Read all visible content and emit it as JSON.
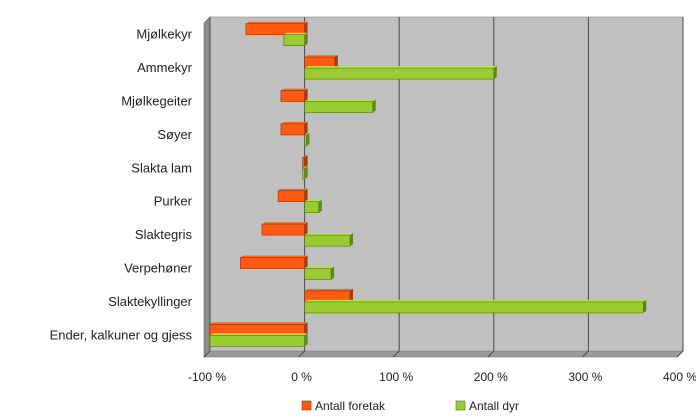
{
  "chart_data": {
    "type": "bar",
    "orientation": "horizontal",
    "categories": [
      "Mjølkekyr",
      "Ammekyr",
      "Mjølkegeiter",
      "Søyer",
      "Slakta lam",
      "Purker",
      "Slaktegris",
      "Verpehøner",
      "Slaktekyllinger",
      "Ender, kalkuner og gjess"
    ],
    "series": [
      {
        "name": "Antall foretak",
        "color": "#ff5a14",
        "values": [
          -62,
          32,
          -25,
          -25,
          -2,
          -28,
          -45,
          -68,
          48,
          -100
        ]
      },
      {
        "name": "Antall dyr",
        "color": "#99cc33",
        "values": [
          -22,
          200,
          72,
          2,
          -2,
          15,
          48,
          28,
          358,
          -100
        ]
      }
    ],
    "xlim": [
      -100,
      400
    ],
    "xticks": [
      -100,
      0,
      100,
      200,
      300,
      400
    ],
    "xtick_labels": [
      "-100 %",
      "0 %",
      "100 %",
      "200 %",
      "300 %",
      "400 %"
    ],
    "grid": true,
    "plot_background": "#c0c0c0",
    "legend_position": "bottom"
  }
}
